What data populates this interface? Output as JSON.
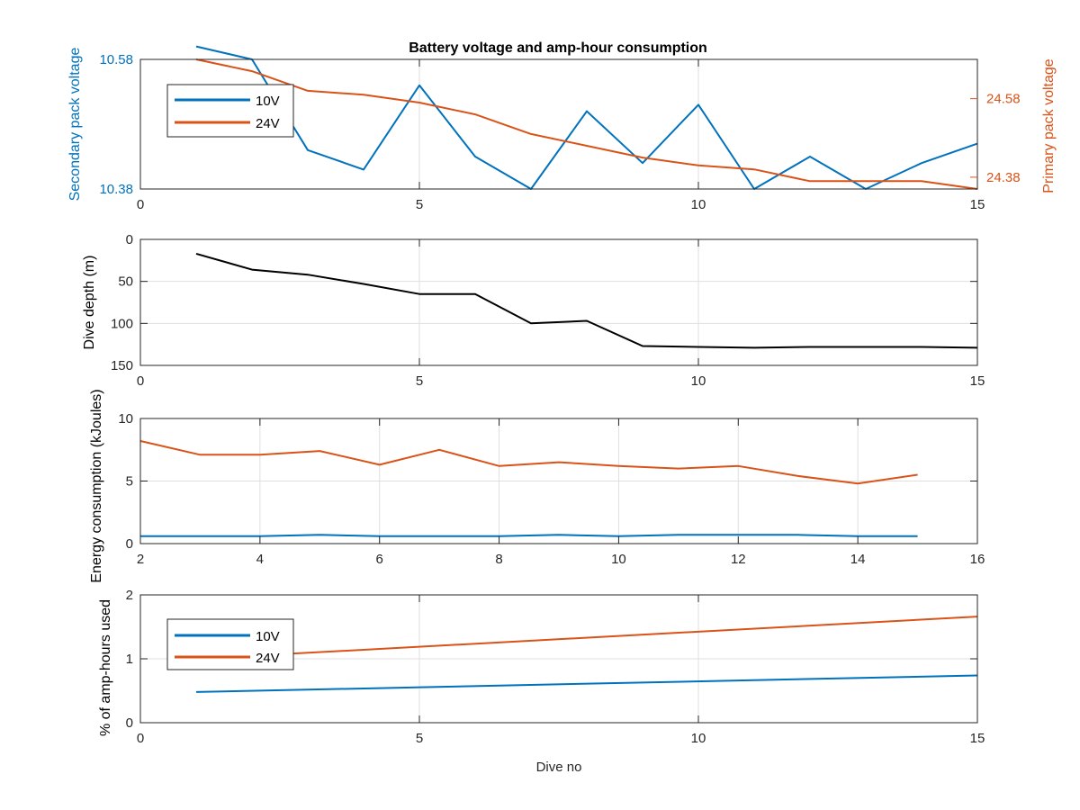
{
  "figure": {
    "title": "Battery voltage and amp-hour consumption",
    "xlabel": "Dive no"
  },
  "colors": {
    "blue": "#0072BD",
    "orange": "#D95319",
    "black": "#000000",
    "grid": "#dfdfdf",
    "axis": "#262626"
  },
  "chart_data": [
    {
      "type": "line",
      "title": "Battery voltage and amp-hour consumption",
      "xlabel": "",
      "ylabel": "Secondary pack voltage",
      "ylabel_right": "Primary pack voltage",
      "xlim": [
        0,
        15
      ],
      "xticks": [
        0,
        5,
        10,
        15
      ],
      "ylim": [
        10.38,
        10.58
      ],
      "yticks": [
        10.38,
        10.58
      ],
      "ylim_right": [
        24.35,
        24.68
      ],
      "yticks_right": [
        24.38,
        24.58
      ],
      "grid": true,
      "legend": {
        "placement": "top-left",
        "entries": [
          "10V",
          "24V"
        ]
      },
      "series": [
        {
          "name": "10V",
          "axis": "left",
          "color": "#0072BD",
          "x": [
            1,
            2,
            3,
            4,
            5,
            6,
            7,
            8,
            9,
            10,
            11,
            12,
            13,
            14,
            15
          ],
          "y": [
            10.6,
            10.58,
            10.44,
            10.41,
            10.54,
            10.43,
            10.38,
            10.5,
            10.42,
            10.51,
            10.38,
            10.43,
            10.38,
            10.42,
            10.45
          ]
        },
        {
          "name": "24V",
          "axis": "right",
          "color": "#D95319",
          "x": [
            1,
            2,
            3,
            4,
            5,
            6,
            7,
            8,
            9,
            10,
            11,
            12,
            13,
            14,
            15
          ],
          "y": [
            24.68,
            24.65,
            24.6,
            24.59,
            24.57,
            24.54,
            24.49,
            24.46,
            24.43,
            24.41,
            24.4,
            24.37,
            24.37,
            24.37,
            24.35
          ]
        }
      ]
    },
    {
      "type": "line",
      "xlabel": "",
      "ylabel": "Dive depth (m)",
      "xlim": [
        0,
        15
      ],
      "xticks": [
        0,
        5,
        10,
        15
      ],
      "ylim": [
        0,
        150
      ],
      "y_reversed": true,
      "yticks": [
        0,
        50,
        100,
        150
      ],
      "grid": true,
      "series": [
        {
          "color": "#000000",
          "x": [
            1,
            2,
            3,
            4,
            5,
            6,
            7,
            8,
            9,
            10,
            11,
            12,
            13,
            14,
            15
          ],
          "y": [
            17,
            36,
            42,
            53,
            65,
            65,
            100,
            97,
            127,
            128,
            129,
            128,
            128,
            128,
            129
          ]
        }
      ]
    },
    {
      "type": "line",
      "xlabel": "",
      "ylabel": "Energy consumption (kJoules)",
      "xlim": [
        2,
        16
      ],
      "xticks": [
        2,
        4,
        6,
        8,
        10,
        12,
        14,
        16
      ],
      "ylim": [
        0,
        10
      ],
      "yticks": [
        0,
        5,
        10
      ],
      "grid": true,
      "series": [
        {
          "color": "#D95319",
          "x": [
            2,
            3,
            4,
            5,
            6,
            7,
            8,
            9,
            10,
            11,
            12,
            13,
            14,
            15
          ],
          "y": [
            8.2,
            7.1,
            7.1,
            7.4,
            6.3,
            7.5,
            6.2,
            6.5,
            6.2,
            6.0,
            6.2,
            5.4,
            4.8,
            5.5
          ]
        },
        {
          "color": "#0072BD",
          "x": [
            2,
            3,
            4,
            5,
            6,
            7,
            8,
            9,
            10,
            11,
            12,
            13,
            14,
            15
          ],
          "y": [
            0.6,
            0.6,
            0.6,
            0.7,
            0.6,
            0.6,
            0.6,
            0.7,
            0.6,
            0.7,
            0.7,
            0.7,
            0.6,
            0.6
          ]
        }
      ]
    },
    {
      "type": "line",
      "xlabel": "Dive no",
      "ylabel": "% of amp-hours used",
      "xlim": [
        0,
        15
      ],
      "xticks": [
        0,
        5,
        10,
        15
      ],
      "ylim": [
        0,
        2
      ],
      "yticks": [
        0,
        1,
        2
      ],
      "grid": true,
      "legend": {
        "placement": "top-left",
        "entries": [
          "10V",
          "24V"
        ]
      },
      "series": [
        {
          "name": "10V",
          "color": "#0072BD",
          "x": [
            1,
            15
          ],
          "y": [
            0.48,
            0.74
          ]
        },
        {
          "name": "24V",
          "color": "#D95319",
          "x": [
            1,
            15
          ],
          "y": [
            1.0,
            1.66
          ]
        }
      ]
    }
  ]
}
